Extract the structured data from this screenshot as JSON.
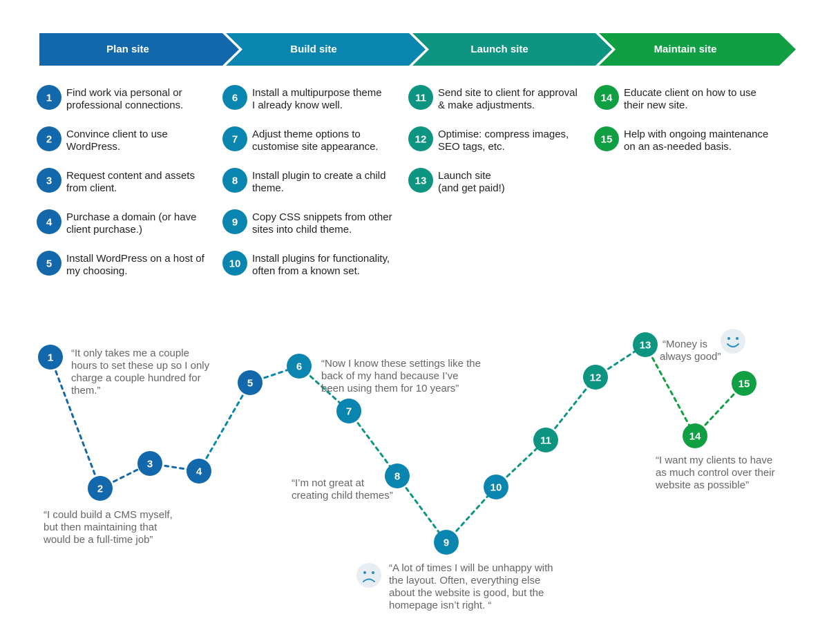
{
  "colors": {
    "blue": "#1268aa",
    "cyan_blue": "#0a85b0",
    "teal": "#0d9582",
    "green": "#10a043",
    "step_text": "#222222",
    "quote_text": "#666666",
    "emoji_bg": "#e8edf2",
    "emoji_stroke": "#2c8fc4"
  },
  "phases": [
    {
      "label": "Plan site",
      "color": "#1268aa",
      "steps": [
        {
          "num": "1",
          "lines": [
            "Find work via personal or",
            "professional connections."
          ]
        },
        {
          "num": "2",
          "lines": [
            "Convince client to use",
            "WordPress."
          ]
        },
        {
          "num": "3",
          "lines": [
            "Request content and assets",
            "from client."
          ]
        },
        {
          "num": "4",
          "lines": [
            "Purchase a domain (or have",
            "client purchase.)"
          ]
        },
        {
          "num": "5",
          "lines": [
            "Install WordPress on a host of",
            "my choosing."
          ]
        }
      ]
    },
    {
      "label": "Build site",
      "color": "#0a85b0",
      "steps": [
        {
          "num": "6",
          "lines": [
            "Install a multipurpose theme",
            "I already know well."
          ]
        },
        {
          "num": "7",
          "lines": [
            "Adjust theme options to",
            "customise site appearance."
          ]
        },
        {
          "num": "8",
          "lines": [
            "Install plugin to create a child",
            "theme."
          ]
        },
        {
          "num": "9",
          "lines": [
            "Copy CSS snippets from other",
            "sites into child theme."
          ]
        },
        {
          "num": "10",
          "lines": [
            "Install plugins for functionality,",
            "often from a known set."
          ]
        }
      ]
    },
    {
      "label": "Launch site",
      "color": "#0d9582",
      "steps": [
        {
          "num": "11",
          "lines": [
            "Send site to client for approval",
            "& make adjustments."
          ]
        },
        {
          "num": "12",
          "lines": [
            "Optimise: compress images,",
            "SEO tags, etc."
          ]
        },
        {
          "num": "13",
          "lines": [
            "Launch site",
            "(and get paid!)"
          ]
        }
      ]
    },
    {
      "label": "Maintain site",
      "color": "#10a043",
      "steps": [
        {
          "num": "14",
          "lines": [
            "Educate client on how to use",
            "their new site."
          ]
        },
        {
          "num": "15",
          "lines": [
            "Help with ongoing maintenance",
            "on an as-needed basis."
          ]
        }
      ]
    }
  ],
  "journey": {
    "nodes": [
      {
        "num": "1",
        "phase": "plan"
      },
      {
        "num": "2",
        "phase": "plan"
      },
      {
        "num": "3",
        "phase": "plan"
      },
      {
        "num": "4",
        "phase": "plan"
      },
      {
        "num": "5",
        "phase": "plan"
      },
      {
        "num": "6",
        "phase": "build"
      },
      {
        "num": "7",
        "phase": "build"
      },
      {
        "num": "8",
        "phase": "build"
      },
      {
        "num": "9",
        "phase": "build"
      },
      {
        "num": "10",
        "phase": "build"
      },
      {
        "num": "11",
        "phase": "launch"
      },
      {
        "num": "12",
        "phase": "launch"
      },
      {
        "num": "13",
        "phase": "launch"
      },
      {
        "num": "14",
        "phase": "maintain"
      },
      {
        "num": "15",
        "phase": "maintain"
      }
    ],
    "quotes": [
      {
        "lines": [
          "“It only takes me a couple",
          "hours to set these up so I only",
          "charge a couple hundred for",
          "them.”"
        ]
      },
      {
        "lines": [
          "“I could build a CMS myself,",
          "but then maintaining that",
          "would be a full-time job”"
        ]
      },
      {
        "lines": [
          "“Now I know these settings like the",
          "back of my hand because I’ve",
          "been using them for 10 years”"
        ]
      },
      {
        "lines": [
          "“I’m not great at",
          "creating child themes”"
        ]
      },
      {
        "lines": [
          "“A lot of times I will be unhappy with",
          "the layout. Often, everything else",
          "about the website is good, but the",
          "homepage isn’t right. “"
        ]
      },
      {
        "lines": [
          "“Money is",
          "always good”"
        ]
      },
      {
        "lines": [
          "“I want my clients to have",
          "as much control over their",
          "website as possible”"
        ]
      }
    ],
    "emojis": [
      {
        "name": "sad-face-icon"
      },
      {
        "name": "happy-face-icon"
      }
    ]
  }
}
